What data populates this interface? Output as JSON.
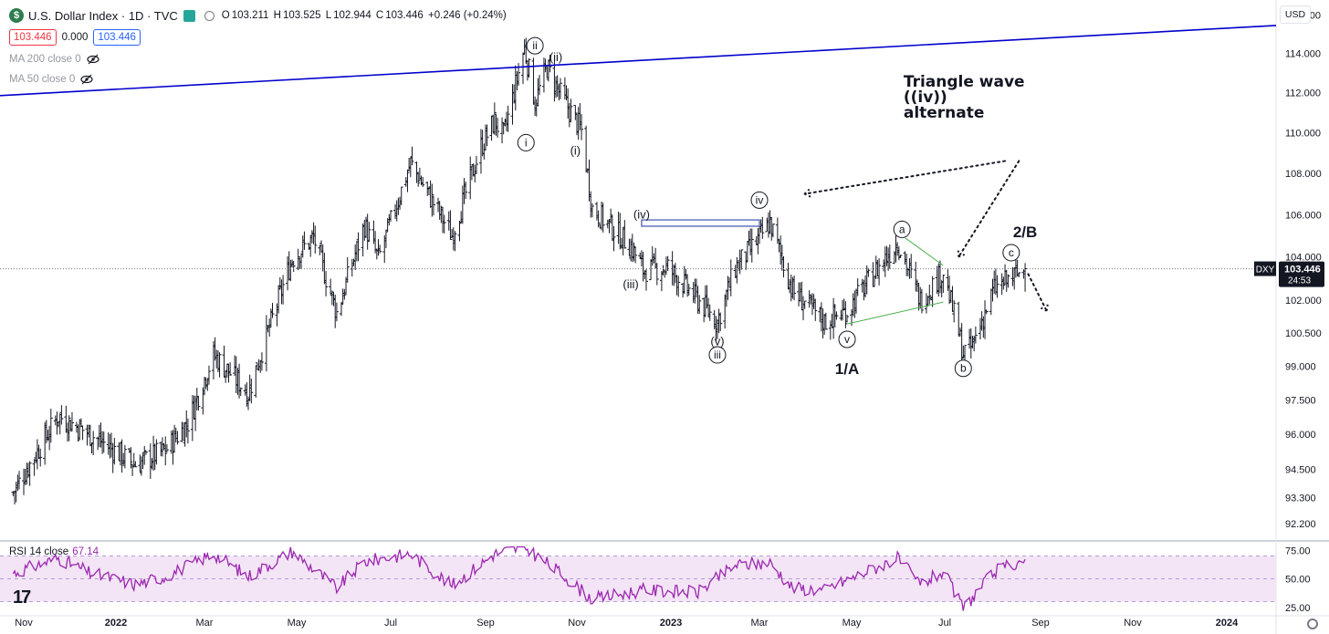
{
  "header": {
    "symbol_logo": "$",
    "symbol_title": "U.S. Dollar Index · 1D · TVC",
    "open_label": "O",
    "open": "103.211",
    "high_label": "H",
    "high": "103.525",
    "low_label": "L",
    "low": "102.944",
    "close_label": "C",
    "close": "103.446",
    "change": "+0.246 (+0.24%)",
    "bid": "103.446",
    "spread": "0.000",
    "ask": "103.446",
    "ma200_label": "MA 200 close 0",
    "ma50_label": "MA 50 close 0",
    "currency_button": "USD"
  },
  "colors": {
    "up_candle": "#131722",
    "trendline": "#0000cc",
    "rsi_line": "#9c27b0",
    "rsi_band": "#f3e5f5",
    "triangle": "#4caf50",
    "price_tag_bg": "#131722"
  },
  "chart_data": [
    {
      "type": "ohlc",
      "title": "U.S. Dollar Index · 1D · TVC",
      "xlabel": "",
      "ylabel": "",
      "ylim": [
        91.6,
        116.4
      ],
      "y_ticks": [
        92.2,
        93.3,
        94.5,
        96.0,
        97.5,
        99.0,
        100.5,
        102.0,
        104.0,
        106.0,
        108.0,
        110.0,
        112.0,
        114.0,
        116.0
      ],
      "y_tick_labels": [
        "92.200",
        "93.300",
        "94.500",
        "96.000",
        "97.500",
        "99.000",
        "100.500",
        "102.000",
        "104.000",
        "106.000",
        "108.000",
        "110.000",
        "112.000",
        "114.000",
        "116.000"
      ],
      "x_ticks": [
        "2021-11-01",
        "2022-01-01",
        "2022-03-01",
        "2022-05-01",
        "2022-07-01",
        "2022-09-01",
        "2022-11-01",
        "2023-01-01",
        "2023-03-01",
        "2023-05-01",
        "2023-07-01",
        "2023-09-01",
        "2023-11-01",
        "2024-01-01"
      ],
      "x_tick_labels": [
        "Nov",
        "2022",
        "Mar",
        "May",
        "Jul",
        "Sep",
        "Nov",
        "2023",
        "Mar",
        "May",
        "Jul",
        "Sep",
        "Nov",
        "2024"
      ],
      "last_price": 103.446,
      "price_tag": {
        "symbol": "DXY",
        "value": "103.446",
        "countdown": "24:53"
      },
      "series_keypoints": {
        "dates": [
          "2021-10-25",
          "2021-11-24",
          "2021-12-15",
          "2022-01-14",
          "2022-02-03",
          "2022-02-18",
          "2022-03-07",
          "2022-03-30",
          "2022-04-28",
          "2022-05-12",
          "2022-05-27",
          "2022-06-14",
          "2022-06-23",
          "2022-07-14",
          "2022-08-10",
          "2022-08-29",
          "2022-09-07",
          "2022-09-13",
          "2022-09-27",
          "2022-10-04",
          "2022-10-12",
          "2022-10-21",
          "2022-11-04",
          "2022-11-11",
          "2022-12-06",
          "2022-12-14",
          "2022-12-30",
          "2023-01-19",
          "2023-02-01",
          "2023-02-13",
          "2023-02-27",
          "2023-03-08",
          "2023-03-23",
          "2023-04-13",
          "2023-04-28",
          "2023-05-31",
          "2023-06-15",
          "2023-06-30",
          "2023-07-13",
          "2023-07-18",
          "2023-08-02",
          "2023-08-11",
          "2023-08-22"
        ],
        "values": [
          93.5,
          96.8,
          96.0,
          94.7,
          95.3,
          96.5,
          99.5,
          97.8,
          103.9,
          104.9,
          101.4,
          105.5,
          103.9,
          108.5,
          105.0,
          109.3,
          110.6,
          109.8,
          114.3,
          111.5,
          113.3,
          111.9,
          110.1,
          106.3,
          104.5,
          103.4,
          103.5,
          102.0,
          101.0,
          103.5,
          104.7,
          105.6,
          102.4,
          101.0,
          101.5,
          104.7,
          102.0,
          103.3,
          99.6,
          99.8,
          102.5,
          102.9,
          103.446
        ]
      }
    },
    {
      "type": "line",
      "title": "RSI 14 close",
      "current_value": "67.14",
      "ylim": [
        20,
        80
      ],
      "y_ticks": [
        25,
        50,
        75
      ],
      "y_tick_labels": [
        "25.00",
        "50.00",
        "75.00"
      ],
      "band": [
        30,
        70
      ],
      "series_keypoints": {
        "dates": [
          "2021-10-25",
          "2021-11-24",
          "2021-12-15",
          "2022-01-14",
          "2022-02-03",
          "2022-03-07",
          "2022-03-30",
          "2022-04-28",
          "2022-05-27",
          "2022-06-14",
          "2022-07-14",
          "2022-08-10",
          "2022-09-07",
          "2022-09-27",
          "2022-10-21",
          "2022-11-11",
          "2022-12-14",
          "2023-01-19",
          "2023-02-13",
          "2023-03-08",
          "2023-03-23",
          "2023-04-13",
          "2023-05-31",
          "2023-06-15",
          "2023-06-30",
          "2023-07-13",
          "2023-08-02",
          "2023-08-22"
        ],
        "values": [
          55,
          68,
          55,
          45,
          52,
          72,
          52,
          74,
          42,
          65,
          72,
          44,
          72,
          78,
          55,
          32,
          40,
          38,
          62,
          64,
          42,
          40,
          68,
          45,
          56,
          24,
          56,
          67.14
        ]
      }
    }
  ],
  "annotations": {
    "elliott_labels": [
      {
        "text": "ii",
        "circled": true,
        "date": "2022-10-04",
        "price": 114.4
      },
      {
        "text": "(ii)",
        "circled": false,
        "date": "2022-10-18",
        "price": 113.8
      },
      {
        "text": "i",
        "circled": true,
        "date": "2022-09-28",
        "price": 109.5
      },
      {
        "text": "(i)",
        "circled": false,
        "date": "2022-10-31",
        "price": 109.1
      },
      {
        "text": "(iv)",
        "circled": false,
        "date": "2022-12-13",
        "price": 106.0
      },
      {
        "text": "iv",
        "circled": true,
        "date": "2023-03-01",
        "price": 106.7
      },
      {
        "text": "(iii)",
        "circled": false,
        "date": "2022-12-06",
        "price": 102.7
      },
      {
        "text": "(v)",
        "circled": false,
        "date": "2023-02-01",
        "price": 100.1
      },
      {
        "text": "iii",
        "circled": true,
        "date": "2023-02-01",
        "price": 99.5
      },
      {
        "text": "v",
        "circled": true,
        "date": "2023-04-28",
        "price": 100.2
      },
      {
        "text": "1/A",
        "circled": false,
        "bold": true,
        "date": "2023-04-28",
        "price": 98.8
      },
      {
        "text": "a",
        "circled": true,
        "date": "2023-06-03",
        "price": 105.3
      },
      {
        "text": "b",
        "circled": true,
        "date": "2023-07-13",
        "price": 98.9
      },
      {
        "text": "c",
        "circled": true,
        "date": "2023-08-13",
        "price": 104.2
      },
      {
        "text": "2/B",
        "circled": false,
        "bold": true,
        "date": "2023-08-22",
        "price": 105.1
      }
    ],
    "note_lines": [
      "Triangle wave",
      "((iv))",
      "alternate"
    ]
  },
  "icons": {
    "eye": "eye-icon",
    "hide": "eye-slash-icon",
    "settings": "gear-icon",
    "brand": "tradingview-logo"
  },
  "brand": {
    "tradingview_mark": "17"
  }
}
